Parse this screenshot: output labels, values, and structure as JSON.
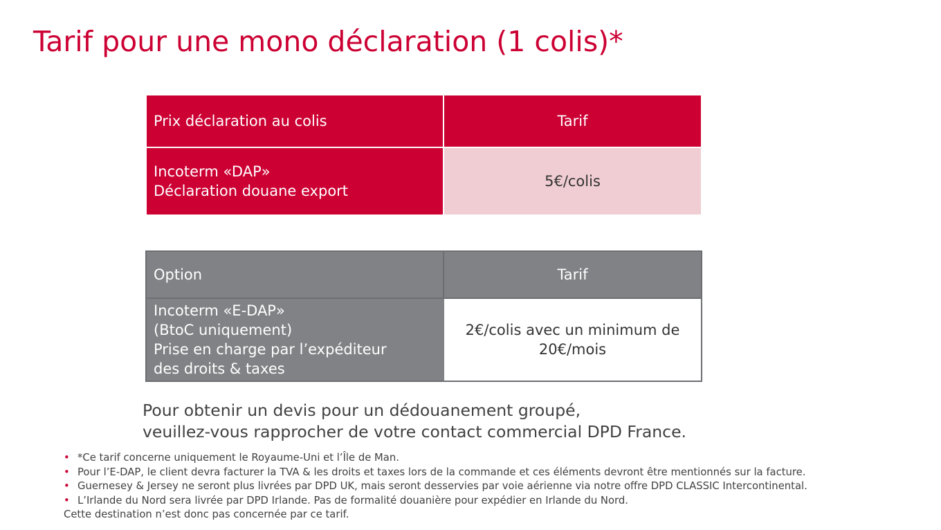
{
  "title": "Tarif pour une mono déclaration (1 colis)*",
  "declaration_table": {
    "header": {
      "col1": "Prix déclaration au colis",
      "col2": "Tarif"
    },
    "row": {
      "label_lines": [
        "Incoterm «DAP»",
        "Déclaration douane export"
      ],
      "value": "5€/colis"
    }
  },
  "option_table": {
    "header": {
      "col1": "Option",
      "col2": "Tarif"
    },
    "row": {
      "label_lines": [
        "Incoterm «E-DAP»",
        "(BtoC uniquement)",
        "Prise en charge par l’expéditeur",
        "des droits & taxes"
      ],
      "value_lines": [
        "2€/colis avec un minimum de",
        "20€/mois"
      ]
    }
  },
  "note_lines": [
    "Pour obtenir un devis pour un dédouanement groupé,",
    "veuillez-vous rapprocher de votre contact commercial DPD France."
  ],
  "footnotes": [
    "*Ce tarif concerne uniquement le Royaume-Uni et l’Île de Man.",
    "Pour l’E-DAP, le client devra facturer la TVA & les droits et taxes lors de la commande et ces éléments devront être mentionnés sur la facture.",
    "Guernesey & Jersey ne seront plus livrées par DPD UK, mais seront desservies par voie aérienne via notre offre DPD CLASSIC Intercontinental.",
    "L’Irlande du Nord sera livrée par DPD Irlande. Pas de formalité douanière pour expédier en Irlande du Nord."
  ],
  "footnote_continuation": "Cette destination n’est donc pas concernée par ce tarif.",
  "bullet_symbol": "•",
  "colors": {
    "brand_red": "#cc0033",
    "light_pink": "#f0cdd2",
    "gray": "#808285"
  }
}
